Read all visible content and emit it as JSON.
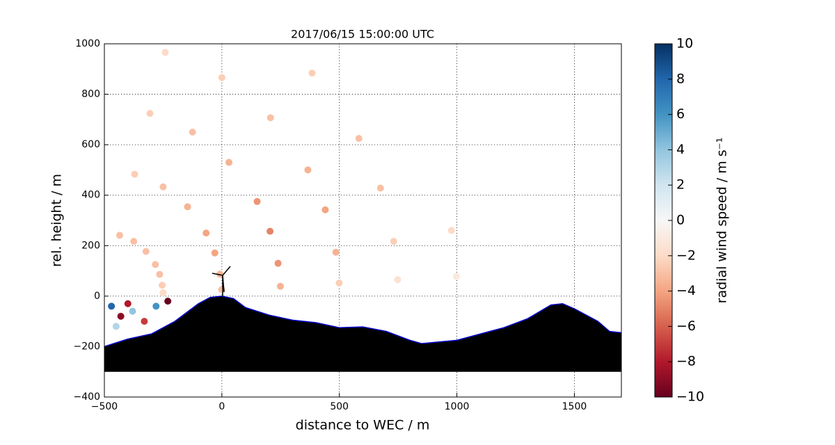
{
  "chart_data": {
    "type": "scatter",
    "title": "2017/06/15 15:00:00 UTC",
    "xlabel": "distance to WEC / m",
    "ylabel": "rel. height / m",
    "xlim": [
      -500,
      1700
    ],
    "ylim": [
      -400,
      1000
    ],
    "xticks": [
      {
        "value": -500,
        "label": "−500"
      },
      0,
      500,
      1000,
      1500
    ],
    "yticks": [
      {
        "value": -400,
        "label": "−400"
      },
      {
        "value": -200,
        "label": "−200"
      },
      0,
      200,
      400,
      600,
      800,
      1000
    ],
    "grid": true,
    "x": [
      -250,
      -1,
      249,
      499,
      748,
      998,
      -254,
      -8,
      239,
      485,
      731,
      977,
      -265,
      -30,
      205,
      440,
      675,
      -283,
      -67,
      150,
      366,
      583,
      -323,
      -146,
      30,
      207,
      384,
      -375,
      -250,
      -125,
      0,
      -435,
      -371,
      -306,
      -241,
      -470,
      -430,
      -380,
      -330,
      -280,
      -230,
      -450,
      -400
    ],
    "y": [
      13,
      26,
      39,
      52,
      65,
      78,
      43,
      87,
      130,
      174,
      217,
      260,
      86,
      171,
      257,
      342,
      428,
      125,
      250,
      375,
      500,
      625,
      177,
      354,
      530,
      707,
      884,
      217,
      433,
      650,
      866,
      241,
      483,
      724,
      966,
      -40,
      -80,
      -60,
      -100,
      -40,
      -20,
      -120,
      -30
    ],
    "values": [
      -2,
      -3,
      -3.5,
      -2.5,
      -1.5,
      -1,
      -2.5,
      -3.5,
      -4.5,
      -3.5,
      -2.5,
      -2,
      -3,
      -4,
      -5,
      -4,
      -3,
      -3,
      -4,
      -4.5,
      -3.5,
      -3,
      -3,
      -3.5,
      -3.5,
      -3,
      -2.5,
      -3,
      -3,
      -3,
      -2.5,
      -3,
      -2.5,
      -2.5,
      -2,
      8,
      -9,
      4,
      -7,
      6,
      -10,
      3,
      -8
    ],
    "colorbar": {
      "label": "radial wind speed / m s⁻¹",
      "lim": [
        -10,
        10
      ],
      "ticks": [
        {
          "value": -10,
          "label": "−10"
        },
        {
          "value": -8,
          "label": "−8"
        },
        {
          "value": -6,
          "label": "−6"
        },
        {
          "value": -4,
          "label": "−4"
        },
        {
          "value": -2,
          "label": "−2"
        },
        0,
        2,
        4,
        6,
        8,
        10
      ],
      "colors": [
        "#67001f",
        "#b2182b",
        "#d6604d",
        "#f4a582",
        "#fddbc7",
        "#f7f7f7",
        "#d1e5f0",
        "#92c5de",
        "#4393c3",
        "#2166ac",
        "#053061"
      ]
    },
    "terrain": {
      "color": "#000000",
      "edge_color": "#0000cc",
      "baseline": -300,
      "x": [
        -500,
        -450,
        -400,
        -300,
        -200,
        -100,
        -50,
        0,
        50,
        100,
        200,
        300,
        400,
        500,
        600,
        700,
        800,
        850,
        1000,
        1100,
        1200,
        1300,
        1400,
        1450,
        1500,
        1600,
        1650,
        1700
      ],
      "y": [
        -200,
        -185,
        -170,
        -150,
        -100,
        -30,
        -5,
        0,
        -10,
        -45,
        -75,
        -95,
        -105,
        -125,
        -122,
        -140,
        -175,
        -188,
        -175,
        -150,
        -125,
        -90,
        -35,
        -30,
        -50,
        -100,
        -140,
        -145
      ]
    }
  }
}
